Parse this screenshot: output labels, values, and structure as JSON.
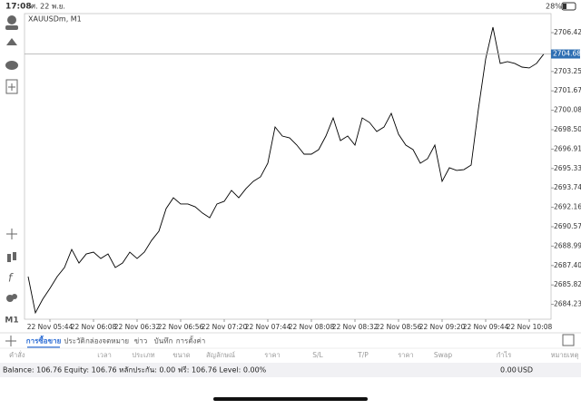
{
  "status_bar": {
    "time": "17:08",
    "date": "ศ. 22 พ.ย.",
    "battery": "28%"
  },
  "sidebar": {
    "timeframe": "M1"
  },
  "chart_data": {
    "type": "line",
    "title": "XAUUSDm, M1",
    "color": "#000000",
    "categories": [
      null,
      null,
      null,
      "22 Nov 05:44",
      null,
      null,
      null,
      null,
      null,
      "22 Nov 06:08",
      null,
      null,
      null,
      null,
      null,
      "22 Nov 06:32",
      null,
      null,
      null,
      null,
      null,
      "22 Nov 06:56",
      null,
      null,
      null,
      null,
      null,
      "22 Nov 07:20",
      null,
      null,
      null,
      null,
      null,
      "22 Nov 07:44",
      null,
      null,
      null,
      null,
      null,
      "22 Nov 08:08",
      null,
      null,
      null,
      null,
      null,
      "22 Nov 08:32",
      null,
      null,
      null,
      null,
      null,
      "22 Nov 08:56",
      null,
      null,
      null,
      null,
      null,
      "22 Nov 09:20",
      null,
      null,
      null,
      null,
      null,
      "22 Nov 09:44",
      null,
      null,
      null,
      null,
      null,
      "22 Nov 10:08",
      null,
      null
    ],
    "values": [
      2686.5,
      2683.54,
      2684.65,
      2685.54,
      2686.5,
      2687.24,
      2688.72,
      2687.61,
      2688.35,
      2688.5,
      2687.98,
      2688.35,
      2687.24,
      2687.61,
      2688.5,
      2687.98,
      2688.5,
      2689.46,
      2690.2,
      2692.06,
      2692.94,
      2692.43,
      2692.43,
      2692.2,
      2691.69,
      2691.31,
      2692.43,
      2692.65,
      2693.54,
      2692.94,
      2693.69,
      2694.28,
      2694.65,
      2695.76,
      2698.72,
      2697.98,
      2697.83,
      2697.24,
      2696.5,
      2696.5,
      2696.87,
      2697.98,
      2699.46,
      2697.61,
      2697.98,
      2697.24,
      2699.46,
      2699.09,
      2698.35,
      2698.72,
      2699.83,
      2698.13,
      2697.24,
      2696.87,
      2695.76,
      2696.13,
      2697.24,
      2694.28,
      2695.39,
      2695.17,
      2695.24,
      2695.61,
      2700.2,
      2704.28,
      2706.87,
      2703.91,
      2704.06,
      2703.91,
      2703.61,
      2703.54,
      2703.91,
      2704.68
    ],
    "ylim": [
      2683.02,
      2707.98
    ],
    "yticks": [
      {
        "value": 2706.425,
        "label": "2706.425"
      },
      {
        "value": 2703.255,
        "label": "2703.255"
      },
      {
        "value": 2701.67,
        "label": "2701.670"
      },
      {
        "value": 2700.085,
        "label": "2700.085"
      },
      {
        "value": 2698.5,
        "label": "2698.500"
      },
      {
        "value": 2696.915,
        "label": "2696.915"
      },
      {
        "value": 2695.33,
        "label": "2695.330"
      },
      {
        "value": 2693.745,
        "label": "2693.745"
      },
      {
        "value": 2692.16,
        "label": "2692.160"
      },
      {
        "value": 2690.575,
        "label": "2690.575"
      },
      {
        "value": 2688.99,
        "label": "2688.990"
      },
      {
        "value": 2687.405,
        "label": "2687.405"
      },
      {
        "value": 2685.82,
        "label": "2685.820"
      },
      {
        "value": 2684.235,
        "label": "2684.235"
      }
    ],
    "last_price": 2704.682
  },
  "tabs": [
    "การซื้อขาย",
    "ประวัติ",
    "กล่องจดหมาย",
    "ข่าว",
    "บันทึก",
    "การตั้งค่า"
  ],
  "active_tab": 0,
  "columns": [
    "คำสั่ง",
    "เวลา",
    "ประเภท",
    "ขนาด",
    "สัญลักษณ์",
    "ราคา",
    "S/L",
    "T/P",
    "ราคา",
    "Swap",
    "กำไร",
    "หมายเหตุ"
  ],
  "account": {
    "summary": "Balance: 106.76 Equity: 106.76 หลักประกัน: 0.00 ฟรี: 106.76 Level: 0.00%",
    "profit": "0.00",
    "currency": "USD"
  }
}
